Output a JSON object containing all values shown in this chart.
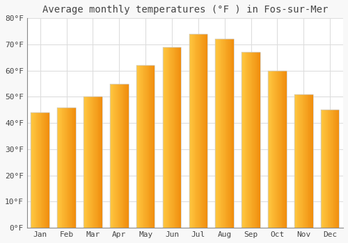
{
  "title": "Average monthly temperatures (°F ) in Fos-sur-Mer",
  "months": [
    "Jan",
    "Feb",
    "Mar",
    "Apr",
    "May",
    "Jun",
    "Jul",
    "Aug",
    "Sep",
    "Oct",
    "Nov",
    "Dec"
  ],
  "values": [
    44,
    46,
    50,
    55,
    62,
    69,
    74,
    72,
    67,
    60,
    51,
    45
  ],
  "bar_color_top": "#FFB732",
  "bar_color_bottom": "#F08000",
  "bar_edge_color": "#CCCCCC",
  "background_color": "#F8F8F8",
  "plot_bg_color": "#FFFFFF",
  "grid_color": "#DDDDDD",
  "text_color": "#444444",
  "ylim": [
    0,
    80
  ],
  "yticks": [
    0,
    10,
    20,
    30,
    40,
    50,
    60,
    70,
    80
  ],
  "title_fontsize": 10,
  "tick_fontsize": 8,
  "bar_width": 0.7
}
